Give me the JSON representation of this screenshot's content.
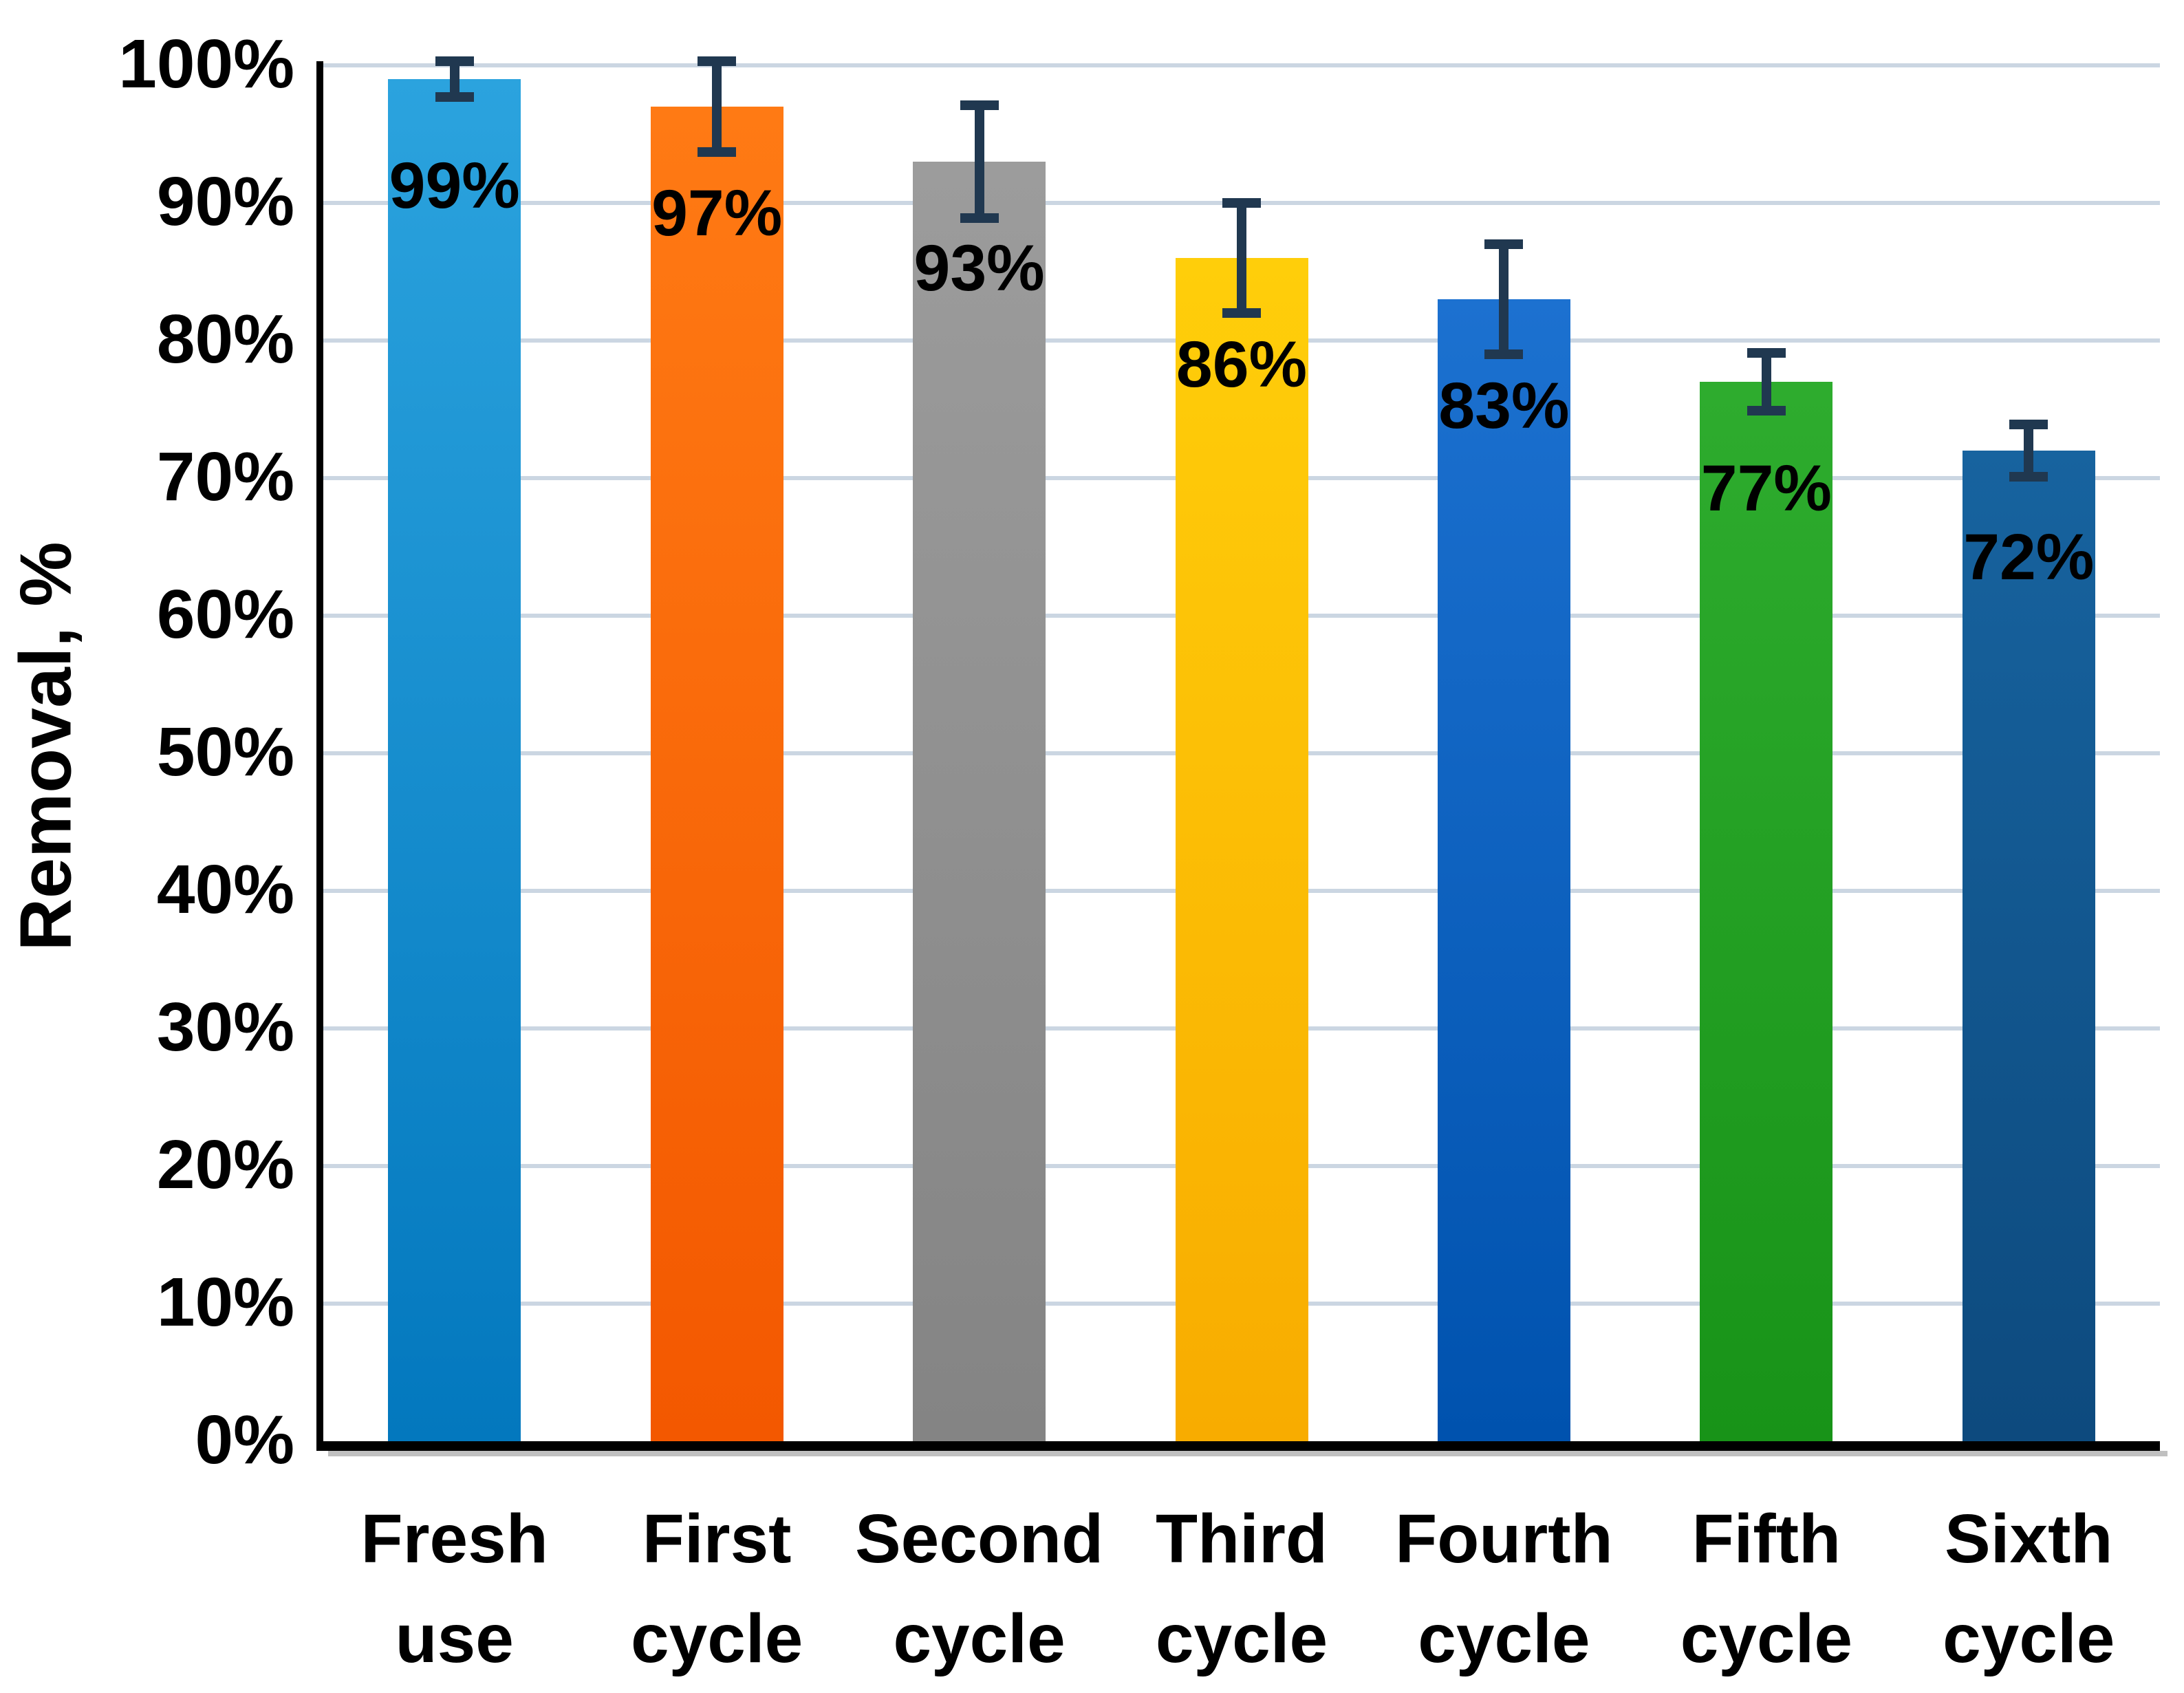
{
  "chart_data": {
    "type": "bar",
    "title": "",
    "ylabel": "Removal, %",
    "ylim": [
      0,
      100
    ],
    "grid": true,
    "legend": false,
    "ytick_labels": [
      "0%",
      "10%",
      "20%",
      "30%",
      "40%",
      "50%",
      "60%",
      "70%",
      "80%",
      "90%",
      "100%"
    ],
    "categories": [
      [
        "Fresh",
        "use"
      ],
      [
        "First",
        "cycle"
      ],
      [
        "Second",
        "cycle"
      ],
      [
        "Third",
        "cycle"
      ],
      [
        "Fourth",
        "cycle"
      ],
      [
        "Fifth",
        "cycle"
      ],
      [
        "Sixth",
        "cycle"
      ]
    ],
    "values": [
      99,
      97,
      93,
      86,
      83,
      77,
      72
    ],
    "value_labels": [
      "99%",
      "97%",
      "93%",
      "86%",
      "83%",
      "77%",
      "72%"
    ],
    "errors": [
      1.3,
      3.3,
      4.1,
      4.0,
      4.0,
      2.1,
      1.9
    ],
    "bar_colors": [
      [
        "#2BA3DE",
        "#0378BE"
      ],
      [
        "#FF7A14",
        "#F35800"
      ],
      [
        "#9C9C9C",
        "#848484"
      ],
      [
        "#FFCE0A",
        "#F8AC00"
      ],
      [
        "#1C71D0",
        "#0052AE"
      ],
      [
        "#2EAC2E",
        "#189318"
      ],
      [
        "#17639F",
        "#0D4A7E"
      ]
    ],
    "error_bar_color": "#203850",
    "gridline_color": "#CBD6E2",
    "axis_color": "#000000",
    "text_color": "#000000"
  }
}
